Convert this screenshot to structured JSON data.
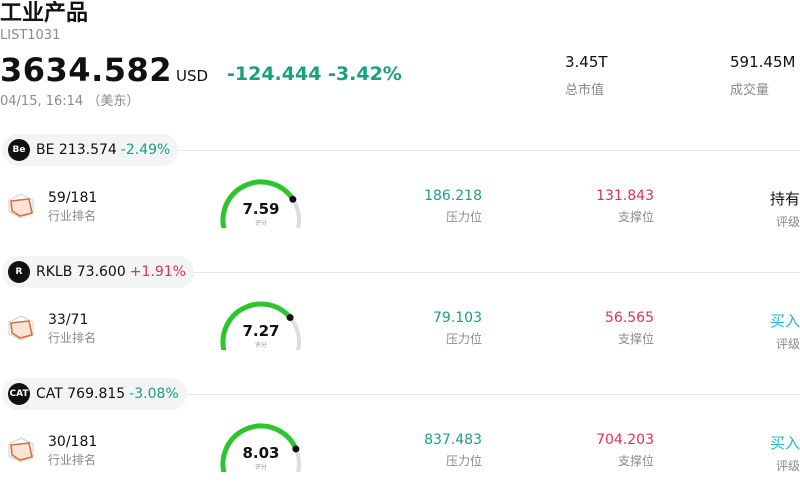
{
  "header": {
    "title": "工业产品",
    "code": "LIST1031",
    "price": "3634.582",
    "currency": "USD",
    "change": "-124.444 -3.42%",
    "time": "04/15, 16:14 （美东）"
  },
  "stats": [
    {
      "value": "3.45T",
      "label": "总市值"
    },
    {
      "value": "591.45M",
      "label": "成交量"
    }
  ],
  "stocks": [
    {
      "logo": "Be",
      "logo_color": "#111111",
      "name": "BE 213.574",
      "change": "-2.49%",
      "direction": "down",
      "rank": "59/181",
      "rank_label": "行业排名",
      "score": "7.59",
      "score_fraction": 0.759,
      "score_label": "评分",
      "resistance": "186.218",
      "resistance_label": "压力位",
      "support": "131.843",
      "support_label": "支撑位",
      "rating": "持有",
      "rating_label": "评级",
      "rating_kind": "hold"
    },
    {
      "logo": "R",
      "logo_color": "#111111",
      "name": "RKLB 73.600",
      "change": "+1.91%",
      "direction": "up",
      "rank": "33/71",
      "rank_label": "行业排名",
      "score": "7.27",
      "score_fraction": 0.727,
      "score_label": "评分",
      "resistance": "79.103",
      "resistance_label": "压力位",
      "support": "56.565",
      "support_label": "支撑位",
      "rating": "买入",
      "rating_label": "评级",
      "rating_kind": "buy"
    },
    {
      "logo": "CAT",
      "logo_color": "#111111",
      "name": "CAT 769.815",
      "change": "-3.08%",
      "direction": "down",
      "rank": "30/181",
      "rank_label": "行业排名",
      "score": "8.03",
      "score_fraction": 0.803,
      "score_label": "评分",
      "resistance": "837.483",
      "resistance_label": "压力位",
      "support": "704.203",
      "support_label": "支撑位",
      "rating": "买入",
      "rating_label": "评级",
      "rating_kind": "buy"
    }
  ],
  "colors": {
    "down": "#1a9f80",
    "up": "#e0334d",
    "gauge_fill": "#2dc52d",
    "gauge_track": "#dcdde2",
    "rank_icon": "#d9703a"
  }
}
